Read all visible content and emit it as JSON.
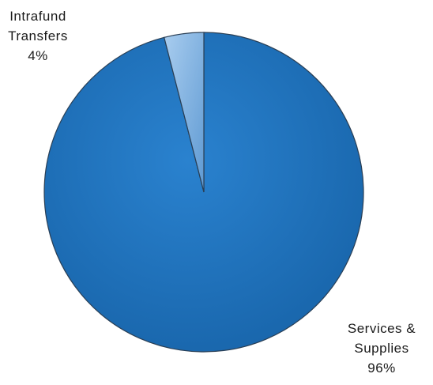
{
  "chart_data": {
    "type": "pie",
    "slices": [
      {
        "category": "Services & Supplies",
        "value": 96,
        "label_lines": [
          "Services &",
          "Supplies",
          "96%"
        ],
        "color": "#1f6fb8"
      },
      {
        "category": "Intrafund Transfers",
        "value": 4,
        "label_lines": [
          "Intrafund",
          "Transfers",
          "4%"
        ],
        "color": "#7fb0de"
      }
    ],
    "legend": "none",
    "start_angle": "12 o'clock",
    "direction": "clockwise"
  }
}
